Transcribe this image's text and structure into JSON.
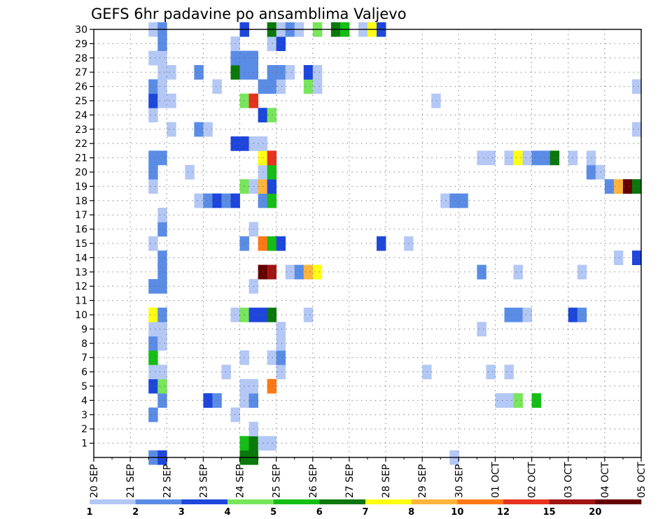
{
  "chart_data": {
    "type": "heatmap",
    "title": "GEFS 6hr padavine po ansamblima Valjevo",
    "xlabel": "",
    "ylabel": "",
    "x_ticks": [
      "20 SEP",
      "21 SEP",
      "22 SEP",
      "23 SEP",
      "24 SEP",
      "25 SEP",
      "26 SEP",
      "27 SEP",
      "28 SEP",
      "29 SEP",
      "30 SEP",
      "01 OCT",
      "02 OCT",
      "03 OCT",
      "04 OCT",
      "05 OCT"
    ],
    "y_ticks": [
      1,
      2,
      3,
      4,
      5,
      6,
      7,
      8,
      9,
      10,
      11,
      12,
      13,
      14,
      15,
      16,
      17,
      18,
      19,
      20,
      21,
      22,
      23,
      24,
      25,
      26,
      27,
      28,
      29,
      30
    ],
    "x_range_steps": [
      0,
      60
    ],
    "y_range": [
      0,
      30
    ],
    "grid": true,
    "colorbar": {
      "labels": [
        "1",
        "2",
        "3",
        "4",
        "5",
        "6",
        "7",
        "8",
        "10",
        "12",
        "15",
        "20"
      ],
      "colors": [
        "#b4c8f5",
        "#5a8ce6",
        "#1e46dc",
        "#78e65a",
        "#14be14",
        "#0a780a",
        "#ffff14",
        "#ffb43c",
        "#ff7814",
        "#e6321e",
        "#a01414",
        "#640000"
      ]
    },
    "cells": [
      [
        0,
        6,
        1
      ],
      [
        0,
        7,
        2
      ],
      [
        0,
        16,
        5
      ],
      [
        0,
        17,
        5
      ],
      [
        0,
        39,
        0
      ],
      [
        1,
        16,
        4
      ],
      [
        1,
        17,
        5
      ],
      [
        1,
        18,
        0
      ],
      [
        1,
        19,
        0
      ],
      [
        2,
        17,
        0
      ],
      [
        3,
        6,
        1
      ],
      [
        3,
        15,
        0
      ],
      [
        4,
        7,
        1
      ],
      [
        4,
        12,
        2
      ],
      [
        4,
        13,
        1
      ],
      [
        4,
        16,
        0
      ],
      [
        4,
        17,
        1
      ],
      [
        4,
        44,
        0
      ],
      [
        4,
        45,
        0
      ],
      [
        4,
        46,
        3
      ],
      [
        4,
        48,
        4
      ],
      [
        5,
        6,
        2
      ],
      [
        5,
        7,
        3
      ],
      [
        5,
        16,
        0
      ],
      [
        5,
        17,
        0
      ],
      [
        5,
        19,
        8
      ],
      [
        6,
        6,
        0
      ],
      [
        6,
        7,
        0
      ],
      [
        6,
        14,
        0
      ],
      [
        6,
        20,
        0
      ],
      [
        6,
        36,
        0
      ],
      [
        6,
        43,
        0
      ],
      [
        6,
        45,
        0
      ],
      [
        7,
        6,
        4
      ],
      [
        7,
        16,
        0
      ],
      [
        7,
        19,
        0
      ],
      [
        7,
        20,
        1
      ],
      [
        8,
        6,
        1
      ],
      [
        8,
        7,
        0
      ],
      [
        8,
        20,
        0
      ],
      [
        9,
        6,
        0
      ],
      [
        9,
        7,
        0
      ],
      [
        9,
        20,
        0
      ],
      [
        9,
        42,
        0
      ],
      [
        10,
        6,
        6
      ],
      [
        10,
        7,
        1
      ],
      [
        10,
        15,
        0
      ],
      [
        10,
        16,
        3
      ],
      [
        10,
        17,
        2
      ],
      [
        10,
        18,
        2
      ],
      [
        10,
        19,
        5
      ],
      [
        10,
        23,
        0
      ],
      [
        10,
        45,
        1
      ],
      [
        10,
        46,
        1
      ],
      [
        10,
        47,
        0
      ],
      [
        10,
        52,
        2
      ],
      [
        10,
        53,
        1
      ],
      [
        12,
        6,
        1
      ],
      [
        12,
        7,
        1
      ],
      [
        12,
        17,
        0
      ],
      [
        13,
        7,
        1
      ],
      [
        13,
        18,
        11
      ],
      [
        13,
        19,
        10
      ],
      [
        13,
        21,
        0
      ],
      [
        13,
        22,
        1
      ],
      [
        13,
        23,
        7
      ],
      [
        13,
        24,
        6
      ],
      [
        13,
        42,
        1
      ],
      [
        13,
        46,
        0
      ],
      [
        13,
        53,
        0
      ],
      [
        14,
        7,
        1
      ],
      [
        14,
        57,
        0
      ],
      [
        14,
        59,
        2
      ],
      [
        15,
        6,
        0
      ],
      [
        15,
        16,
        1
      ],
      [
        15,
        18,
        8
      ],
      [
        15,
        19,
        4
      ],
      [
        15,
        20,
        2
      ],
      [
        15,
        31,
        2
      ],
      [
        15,
        34,
        0
      ],
      [
        16,
        7,
        1
      ],
      [
        16,
        17,
        0
      ],
      [
        17,
        7,
        0
      ],
      [
        18,
        11,
        0
      ],
      [
        18,
        12,
        1
      ],
      [
        18,
        13,
        2
      ],
      [
        18,
        14,
        1
      ],
      [
        18,
        15,
        2
      ],
      [
        18,
        18,
        1
      ],
      [
        18,
        19,
        4
      ],
      [
        18,
        38,
        0
      ],
      [
        18,
        39,
        1
      ],
      [
        18,
        40,
        1
      ],
      [
        19,
        6,
        0
      ],
      [
        19,
        16,
        3
      ],
      [
        19,
        17,
        0
      ],
      [
        19,
        18,
        7
      ],
      [
        19,
        19,
        2
      ],
      [
        19,
        56,
        1
      ],
      [
        19,
        57,
        7
      ],
      [
        19,
        58,
        11
      ],
      [
        19,
        59,
        5
      ],
      [
        20,
        6,
        1
      ],
      [
        20,
        10,
        0
      ],
      [
        20,
        18,
        0
      ],
      [
        20,
        19,
        4
      ],
      [
        20,
        54,
        1
      ],
      [
        20,
        55,
        0
      ],
      [
        21,
        6,
        1
      ],
      [
        21,
        7,
        1
      ],
      [
        21,
        18,
        6
      ],
      [
        21,
        19,
        9
      ],
      [
        21,
        42,
        0
      ],
      [
        21,
        43,
        0
      ],
      [
        21,
        45,
        0
      ],
      [
        21,
        46,
        6
      ],
      [
        21,
        47,
        0
      ],
      [
        21,
        48,
        1
      ],
      [
        21,
        49,
        1
      ],
      [
        21,
        50,
        5
      ],
      [
        21,
        52,
        0
      ],
      [
        21,
        54,
        0
      ],
      [
        22,
        15,
        2
      ],
      [
        22,
        16,
        2
      ],
      [
        22,
        17,
        0
      ],
      [
        22,
        18,
        0
      ],
      [
        23,
        8,
        0
      ],
      [
        23,
        11,
        1
      ],
      [
        23,
        12,
        0
      ],
      [
        23,
        59,
        0
      ],
      [
        24,
        6,
        0
      ],
      [
        24,
        18,
        2
      ],
      [
        24,
        19,
        3
      ],
      [
        25,
        6,
        2
      ],
      [
        25,
        7,
        0
      ],
      [
        25,
        8,
        0
      ],
      [
        25,
        16,
        3
      ],
      [
        25,
        17,
        9
      ],
      [
        25,
        37,
        0
      ],
      [
        26,
        6,
        1
      ],
      [
        26,
        7,
        0
      ],
      [
        26,
        13,
        0
      ],
      [
        26,
        18,
        1
      ],
      [
        26,
        19,
        1
      ],
      [
        26,
        20,
        0
      ],
      [
        26,
        23,
        3
      ],
      [
        26,
        24,
        0
      ],
      [
        26,
        59,
        0
      ],
      [
        27,
        7,
        0
      ],
      [
        27,
        8,
        0
      ],
      [
        27,
        11,
        1
      ],
      [
        27,
        15,
        5
      ],
      [
        27,
        16,
        1
      ],
      [
        27,
        17,
        1
      ],
      [
        27,
        19,
        1
      ],
      [
        27,
        20,
        1
      ],
      [
        27,
        21,
        0
      ],
      [
        27,
        23,
        2
      ],
      [
        27,
        24,
        0
      ],
      [
        28,
        6,
        0
      ],
      [
        28,
        7,
        0
      ],
      [
        28,
        15,
        1
      ],
      [
        28,
        16,
        1
      ],
      [
        28,
        17,
        1
      ],
      [
        29,
        7,
        1
      ],
      [
        29,
        15,
        0
      ],
      [
        29,
        19,
        0
      ],
      [
        29,
        20,
        2
      ],
      [
        30,
        6,
        0
      ],
      [
        30,
        7,
        1
      ],
      [
        30,
        16,
        2
      ],
      [
        30,
        19,
        5
      ],
      [
        30,
        20,
        0
      ],
      [
        30,
        21,
        1
      ],
      [
        30,
        22,
        0
      ],
      [
        30,
        24,
        3
      ],
      [
        30,
        26,
        5
      ],
      [
        30,
        27,
        4
      ],
      [
        30,
        29,
        0
      ],
      [
        30,
        30,
        6
      ],
      [
        30,
        31,
        2
      ]
    ]
  }
}
